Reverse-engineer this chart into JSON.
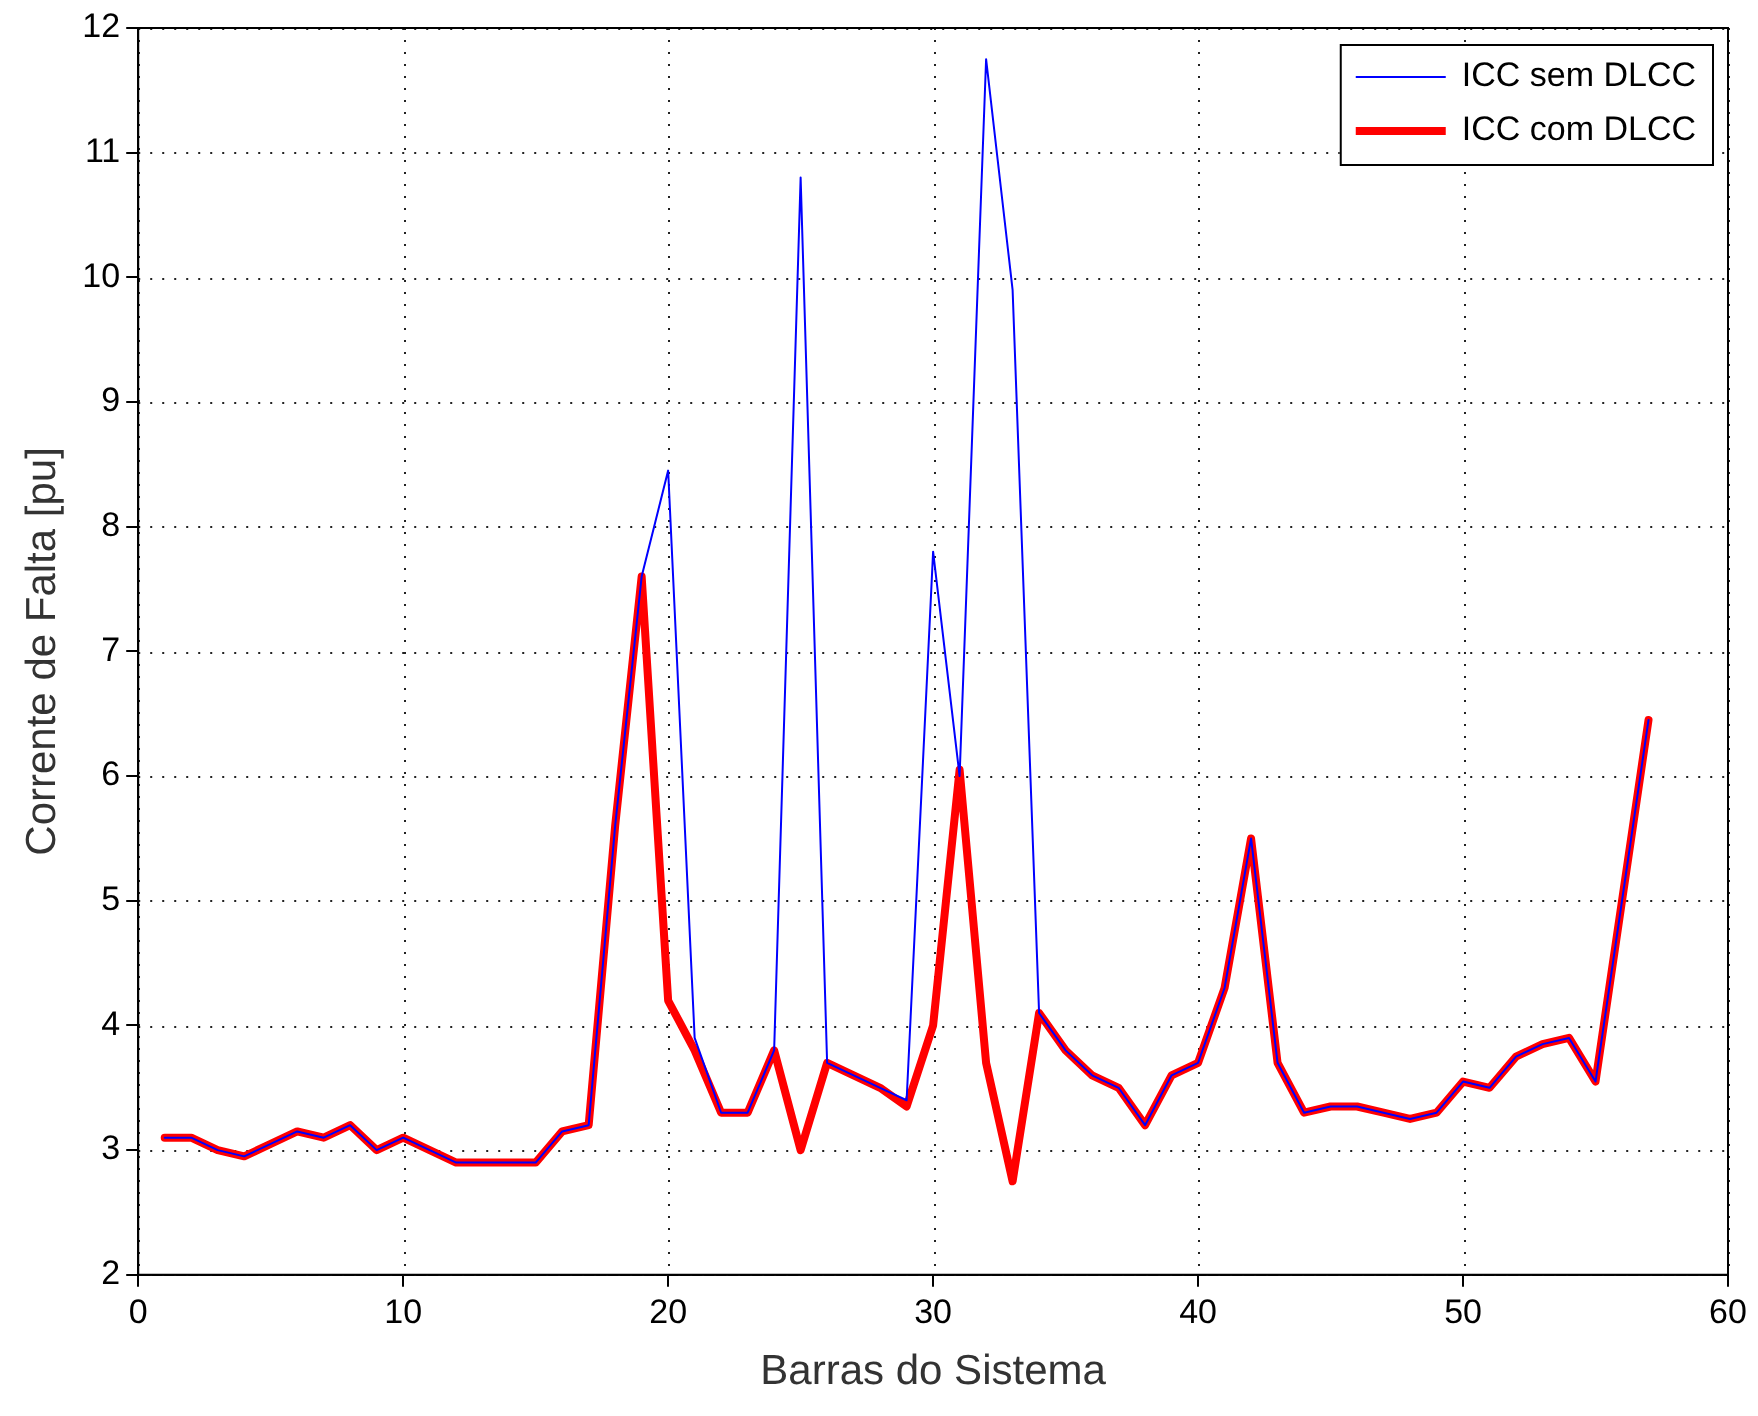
{
  "chart_data": {
    "type": "line",
    "xlabel": "Barras do Sistema",
    "ylabel": "Corrente de Falta [pu]",
    "x": [
      1,
      2,
      3,
      4,
      5,
      6,
      7,
      8,
      9,
      10,
      11,
      12,
      13,
      14,
      15,
      16,
      17,
      18,
      19,
      20,
      21,
      22,
      23,
      24,
      25,
      26,
      27,
      28,
      29,
      30,
      31,
      32,
      33,
      34,
      35,
      36,
      37,
      38,
      39,
      40,
      41,
      42,
      43,
      44,
      45,
      46,
      47,
      48,
      49,
      50,
      51,
      52,
      53,
      54,
      55,
      56,
      57
    ],
    "series": [
      {
        "name": "ICC sem DLCC",
        "color": "#0000ff",
        "values": [
          3.1,
          3.1,
          3.0,
          2.95,
          3.05,
          3.15,
          3.1,
          3.2,
          3.0,
          3.1,
          3.0,
          2.9,
          2.9,
          2.9,
          2.9,
          3.15,
          3.2,
          5.6,
          7.6,
          8.45,
          3.9,
          3.3,
          3.3,
          3.8,
          10.8,
          3.7,
          3.6,
          3.5,
          3.4,
          7.8,
          6.0,
          11.75,
          9.9,
          4.1,
          3.8,
          3.6,
          3.5,
          3.2,
          3.6,
          3.7,
          4.3,
          5.5,
          3.7,
          3.3,
          3.35,
          3.35,
          3.3,
          3.25,
          3.3,
          3.55,
          3.5,
          3.75,
          3.85,
          3.9,
          3.55,
          5.0,
          6.45
        ]
      },
      {
        "name": "ICC com DLCC",
        "color": "#ff0000",
        "values": [
          3.1,
          3.1,
          3.0,
          2.95,
          3.05,
          3.15,
          3.1,
          3.2,
          3.0,
          3.1,
          3.0,
          2.9,
          2.9,
          2.9,
          2.9,
          3.15,
          3.2,
          5.6,
          7.6,
          4.2,
          3.8,
          3.3,
          3.3,
          3.8,
          3.0,
          3.7,
          3.6,
          3.5,
          3.35,
          4.0,
          6.05,
          3.7,
          2.75,
          4.1,
          3.8,
          3.6,
          3.5,
          3.2,
          3.6,
          3.7,
          4.3,
          5.5,
          3.7,
          3.3,
          3.35,
          3.35,
          3.3,
          3.25,
          3.3,
          3.55,
          3.5,
          3.75,
          3.85,
          3.9,
          3.55,
          5.0,
          6.45
        ]
      }
    ],
    "xlim": [
      0,
      60
    ],
    "xticks": [
      0,
      10,
      20,
      30,
      40,
      50,
      60
    ],
    "ylim": [
      2,
      12
    ],
    "yticks": [
      2,
      3,
      4,
      5,
      6,
      7,
      8,
      9,
      10,
      11,
      12
    ],
    "grid": true,
    "legend": "top right",
    "marker": "none",
    "line_style": "solid"
  }
}
